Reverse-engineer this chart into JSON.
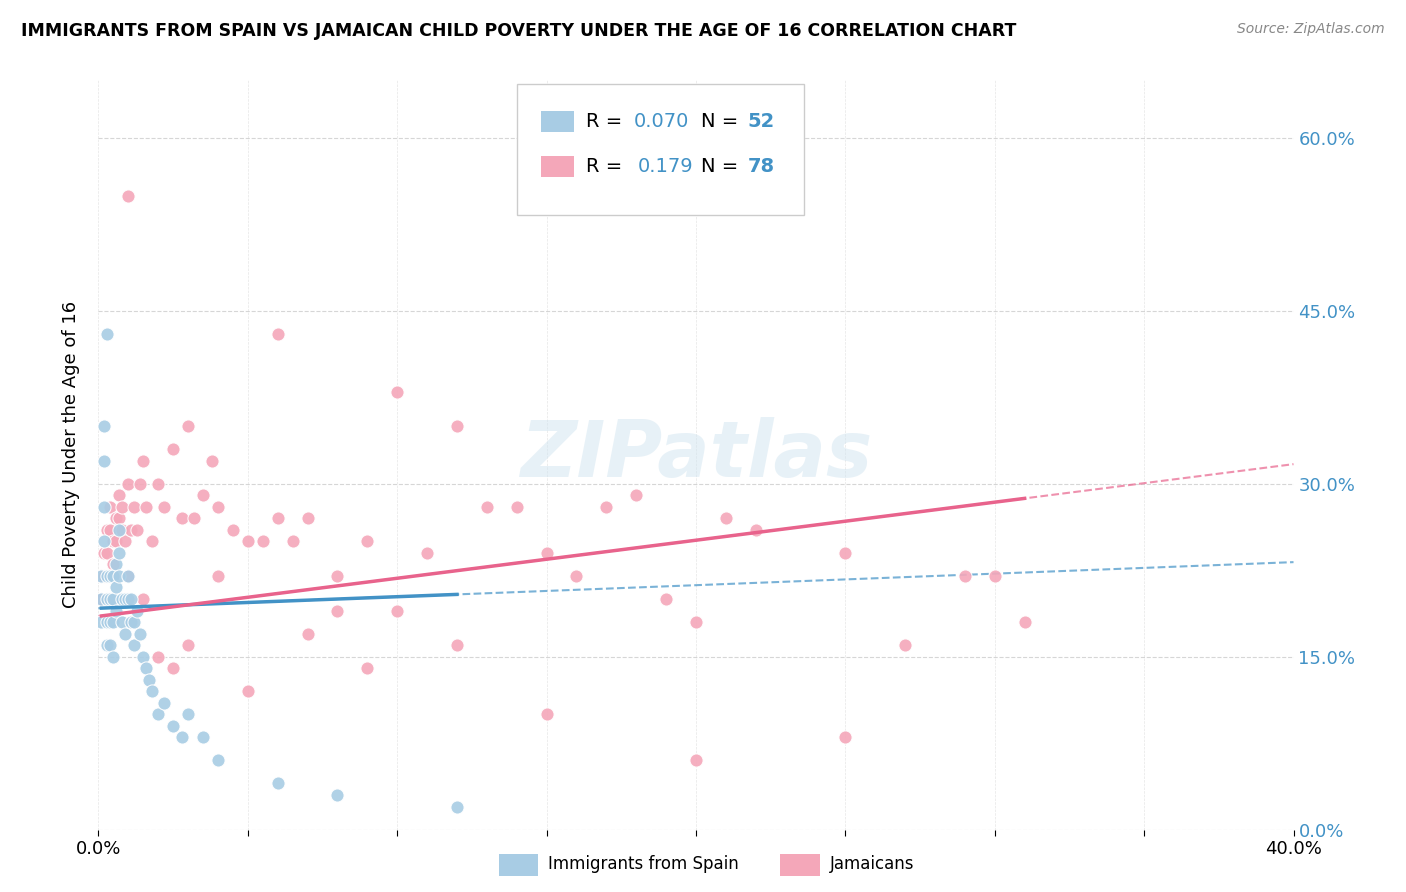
{
  "title": "IMMIGRANTS FROM SPAIN VS JAMAICAN CHILD POVERTY UNDER THE AGE OF 16 CORRELATION CHART",
  "source": "Source: ZipAtlas.com",
  "ylabel": "Child Poverty Under the Age of 16",
  "xlim": [
    0.0,
    0.4
  ],
  "ylim": [
    0.0,
    0.65
  ],
  "yticks": [
    0.0,
    0.15,
    0.3,
    0.45,
    0.6
  ],
  "xticks": [
    0.0,
    0.05,
    0.1,
    0.15,
    0.2,
    0.25,
    0.3,
    0.35,
    0.4
  ],
  "color_blue": "#a8cce4",
  "color_pink": "#f4a7b9",
  "color_blue_text": "#4292c6",
  "trendline_blue": "#4292c6",
  "trendline_pink": "#e8638c",
  "background": "#ffffff",
  "grid_color": "#cccccc",
  "watermark": "ZIPatlas",
  "legend_bottom_labels": [
    "Immigrants from Spain",
    "Jamaicans"
  ],
  "spain_x": [
    0.001,
    0.001,
    0.001,
    0.002,
    0.002,
    0.002,
    0.002,
    0.003,
    0.003,
    0.003,
    0.003,
    0.003,
    0.004,
    0.004,
    0.004,
    0.004,
    0.005,
    0.005,
    0.005,
    0.005,
    0.006,
    0.006,
    0.006,
    0.007,
    0.007,
    0.007,
    0.008,
    0.008,
    0.009,
    0.009,
    0.01,
    0.01,
    0.011,
    0.011,
    0.012,
    0.012,
    0.013,
    0.014,
    0.015,
    0.016,
    0.017,
    0.018,
    0.02,
    0.022,
    0.025,
    0.028,
    0.03,
    0.035,
    0.04,
    0.06,
    0.08,
    0.12
  ],
  "spain_y": [
    0.2,
    0.22,
    0.18,
    0.35,
    0.32,
    0.28,
    0.25,
    0.43,
    0.22,
    0.2,
    0.18,
    0.16,
    0.22,
    0.2,
    0.18,
    0.16,
    0.22,
    0.2,
    0.18,
    0.15,
    0.23,
    0.21,
    0.19,
    0.26,
    0.24,
    0.22,
    0.2,
    0.18,
    0.2,
    0.17,
    0.22,
    0.2,
    0.2,
    0.18,
    0.18,
    0.16,
    0.19,
    0.17,
    0.15,
    0.14,
    0.13,
    0.12,
    0.1,
    0.11,
    0.09,
    0.08,
    0.1,
    0.08,
    0.06,
    0.04,
    0.03,
    0.02
  ],
  "jamaica_x": [
    0.001,
    0.001,
    0.002,
    0.002,
    0.003,
    0.003,
    0.004,
    0.004,
    0.005,
    0.005,
    0.006,
    0.006,
    0.007,
    0.007,
    0.008,
    0.008,
    0.009,
    0.01,
    0.01,
    0.011,
    0.012,
    0.013,
    0.014,
    0.015,
    0.016,
    0.018,
    0.02,
    0.022,
    0.025,
    0.028,
    0.03,
    0.032,
    0.035,
    0.038,
    0.04,
    0.045,
    0.05,
    0.055,
    0.06,
    0.065,
    0.07,
    0.08,
    0.09,
    0.1,
    0.11,
    0.12,
    0.13,
    0.14,
    0.15,
    0.16,
    0.17,
    0.18,
    0.19,
    0.2,
    0.21,
    0.22,
    0.25,
    0.27,
    0.29,
    0.31,
    0.01,
    0.015,
    0.02,
    0.025,
    0.03,
    0.04,
    0.05,
    0.06,
    0.07,
    0.08,
    0.09,
    0.1,
    0.12,
    0.15,
    0.2,
    0.25,
    0.3
  ],
  "jamaica_y": [
    0.22,
    0.2,
    0.24,
    0.22,
    0.26,
    0.24,
    0.28,
    0.26,
    0.25,
    0.23,
    0.27,
    0.25,
    0.29,
    0.27,
    0.28,
    0.26,
    0.25,
    0.3,
    0.22,
    0.26,
    0.28,
    0.26,
    0.3,
    0.32,
    0.28,
    0.25,
    0.3,
    0.28,
    0.33,
    0.27,
    0.35,
    0.27,
    0.29,
    0.32,
    0.28,
    0.26,
    0.25,
    0.25,
    0.27,
    0.25,
    0.27,
    0.22,
    0.25,
    0.19,
    0.24,
    0.35,
    0.28,
    0.28,
    0.24,
    0.22,
    0.28,
    0.29,
    0.2,
    0.18,
    0.27,
    0.26,
    0.24,
    0.16,
    0.22,
    0.18,
    0.55,
    0.2,
    0.15,
    0.14,
    0.16,
    0.22,
    0.12,
    0.43,
    0.17,
    0.19,
    0.14,
    0.38,
    0.16,
    0.1,
    0.06,
    0.08,
    0.22
  ]
}
